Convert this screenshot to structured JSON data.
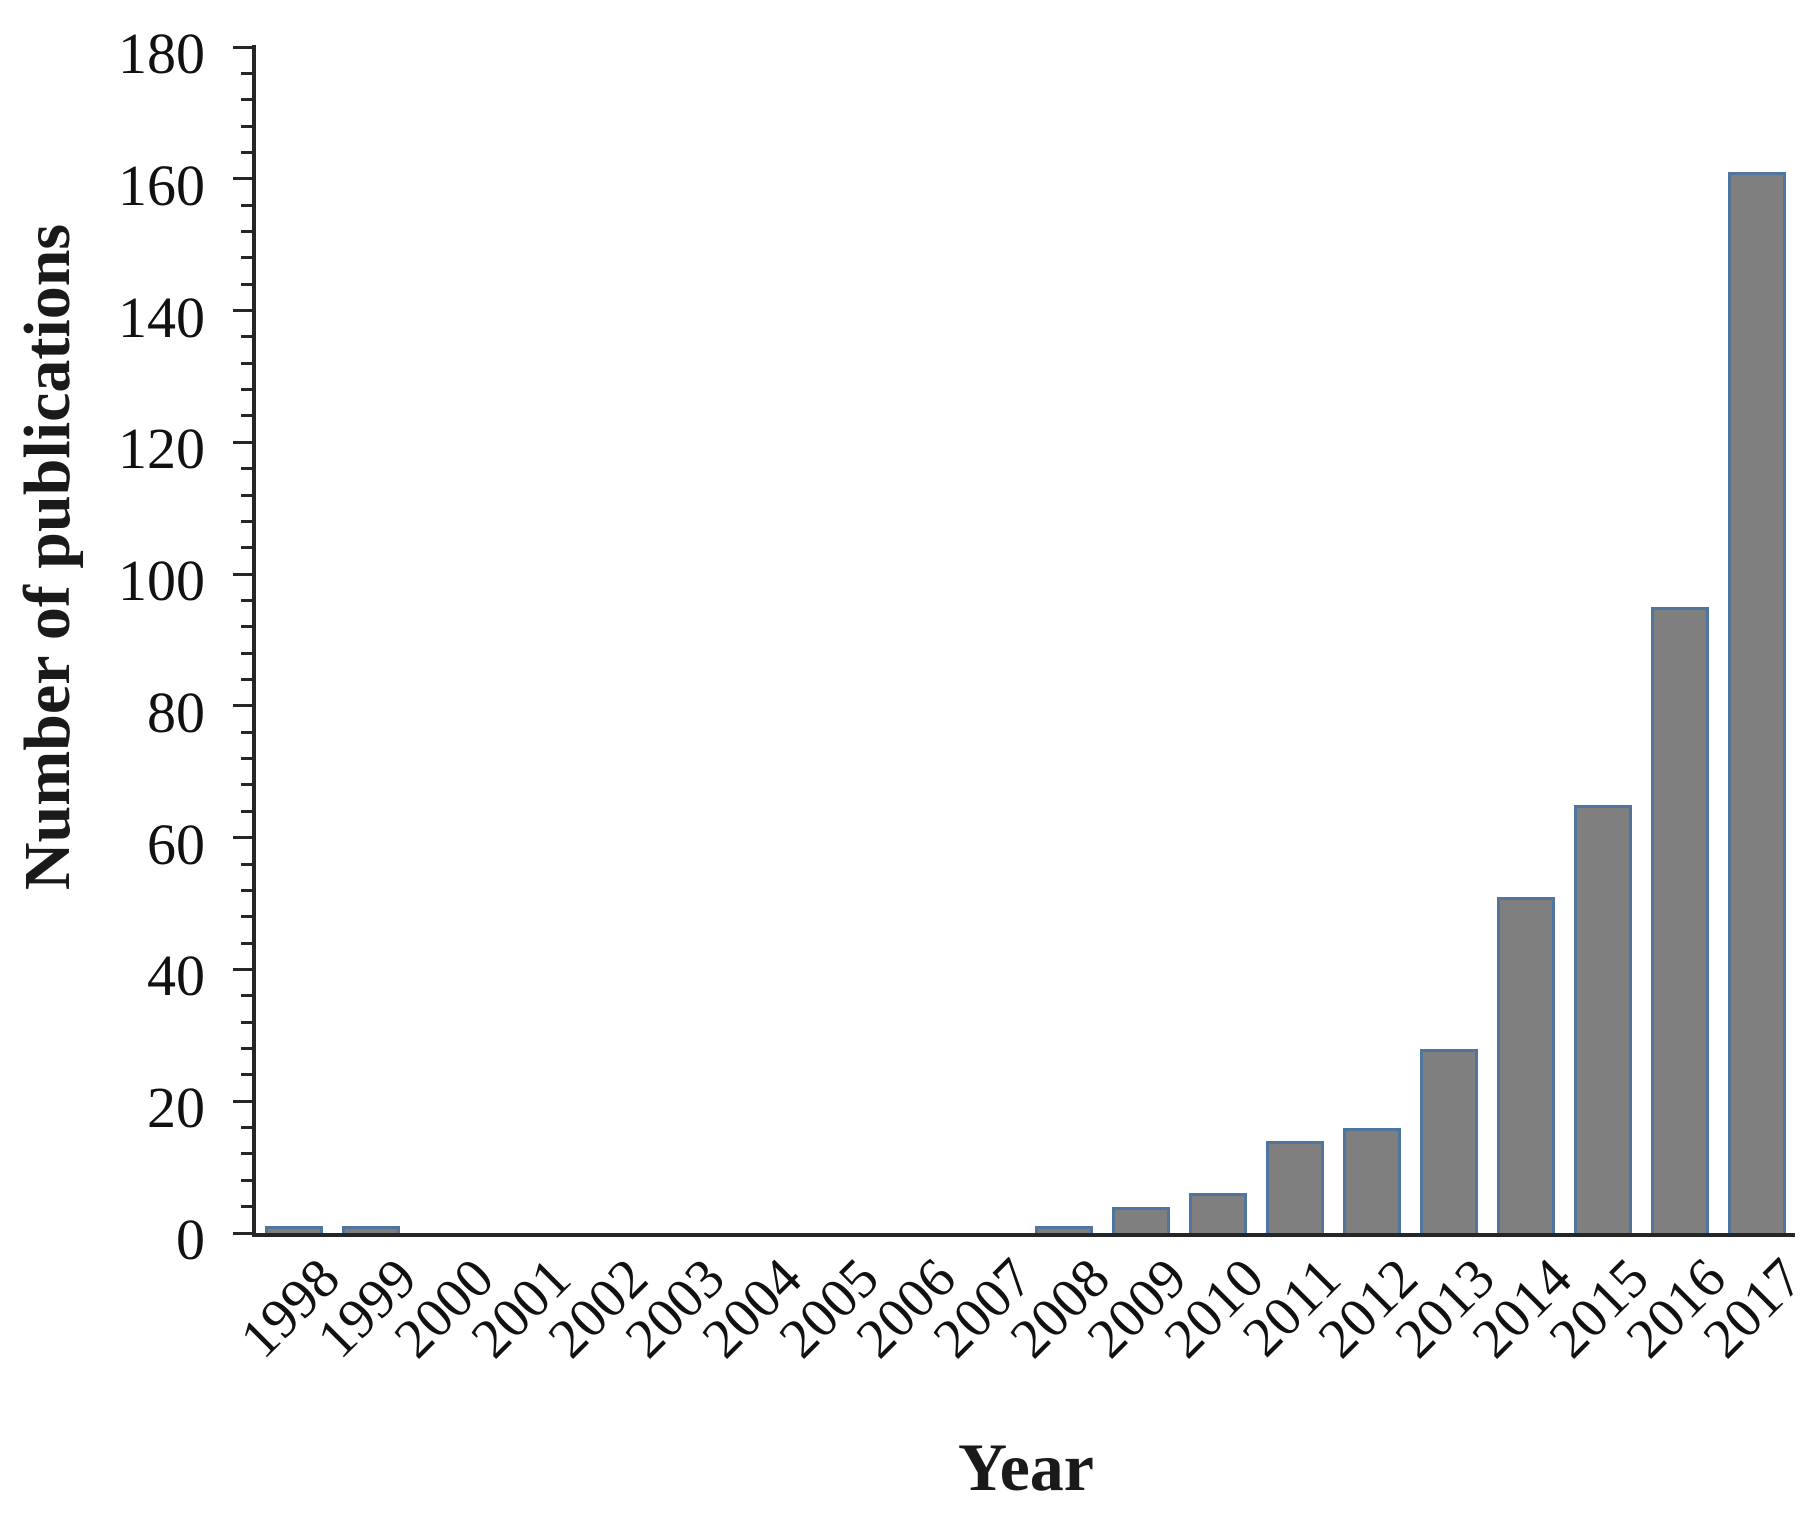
{
  "chart_data": {
    "type": "bar",
    "title": "",
    "xlabel": "Year",
    "ylabel": "Number of publications",
    "categories": [
      "1998",
      "1999",
      "2000",
      "2001",
      "2002",
      "2003",
      "2004",
      "2005",
      "2006",
      "2007",
      "2008",
      "2009",
      "2010",
      "2011",
      "2012",
      "2013",
      "2014",
      "2015",
      "2016",
      "2017"
    ],
    "values": [
      1,
      1,
      0,
      0,
      0,
      0,
      0,
      0,
      0,
      0,
      1,
      4,
      6,
      14,
      16,
      28,
      51,
      65,
      95,
      161
    ],
    "ylim": [
      0,
      180
    ],
    "ytick_interval": 20,
    "yminor_tick_interval": 4,
    "ytick_labels": [
      "0",
      "20",
      "40",
      "60",
      "80",
      "100",
      "120",
      "140",
      "160",
      "180"
    ],
    "grid": false,
    "legend": null,
    "bar_fill_color": "#7f7f7f",
    "bar_border_color": "#50769f",
    "axis_color": "#262626",
    "text_color": "#111111"
  }
}
